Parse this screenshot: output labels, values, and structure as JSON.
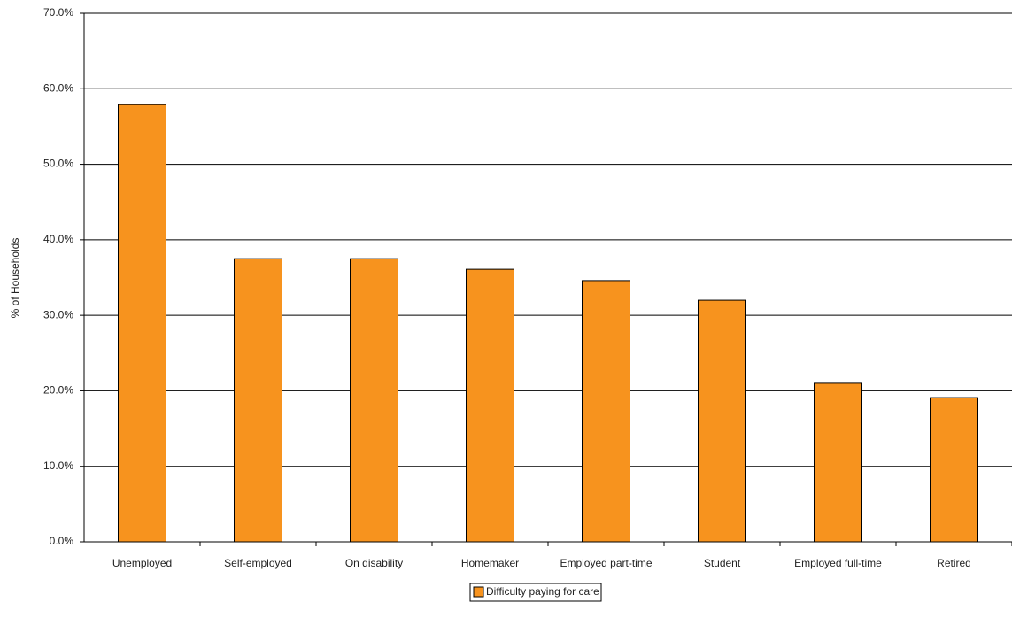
{
  "chart_data": {
    "type": "bar",
    "y_label": "% of Households",
    "categories": [
      "Unemployed",
      "Self-employed",
      "On disability",
      "Homemaker",
      "Employed part-time",
      "Student",
      "Employed full-time",
      "Retired"
    ],
    "series": [
      {
        "name": "Difficulty paying for care",
        "color": "#f7931e",
        "values": [
          57.9,
          37.5,
          37.5,
          36.1,
          34.6,
          32.0,
          21.0,
          19.1
        ]
      }
    ],
    "ylim": [
      0,
      70
    ],
    "yticks": [
      {
        "value": 0,
        "label": "0.0%"
      },
      {
        "value": 10,
        "label": "10.0%"
      },
      {
        "value": 20,
        "label": "20.0%"
      },
      {
        "value": 30,
        "label": "30.0%"
      },
      {
        "value": 40,
        "label": "40.0%"
      },
      {
        "value": 50,
        "label": "50.0%"
      },
      {
        "value": 60,
        "label": "60.0%"
      },
      {
        "value": 70,
        "label": "70.0%"
      }
    ],
    "grid": true,
    "legend": "bottom"
  }
}
